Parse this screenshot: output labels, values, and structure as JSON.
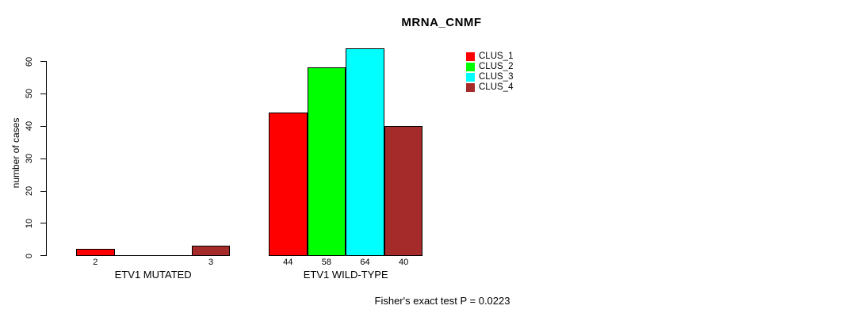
{
  "chart_data": {
    "type": "bar",
    "title": "MRNA_CNMF",
    "ylabel": "number of cases",
    "xlabel": "",
    "ylim": [
      0,
      60
    ],
    "yticks": [
      0,
      10,
      20,
      30,
      40,
      50,
      60
    ],
    "grid": false,
    "legend_position": "top-right-inside",
    "categories": [
      "ETV1 MUTATED",
      "ETV1 WILD-TYPE"
    ],
    "series": [
      {
        "name": "CLUS_1",
        "color": "#ff0000",
        "values": [
          2,
          44
        ]
      },
      {
        "name": "CLUS_2",
        "color": "#00ff00",
        "values": [
          0,
          58
        ]
      },
      {
        "name": "CLUS_3",
        "color": "#00ffff",
        "values": [
          0,
          64
        ]
      },
      {
        "name": "CLUS_4",
        "color": "#a52a2a",
        "values": [
          3,
          40
        ]
      }
    ],
    "bar_value_labels": {
      "ETV1 MUTATED": [
        "2",
        "",
        "",
        "3"
      ],
      "ETV1 WILD-TYPE": [
        "44",
        "58",
        "64",
        "40"
      ]
    },
    "annotation": "Fisher's exact test P = 0.0223"
  }
}
